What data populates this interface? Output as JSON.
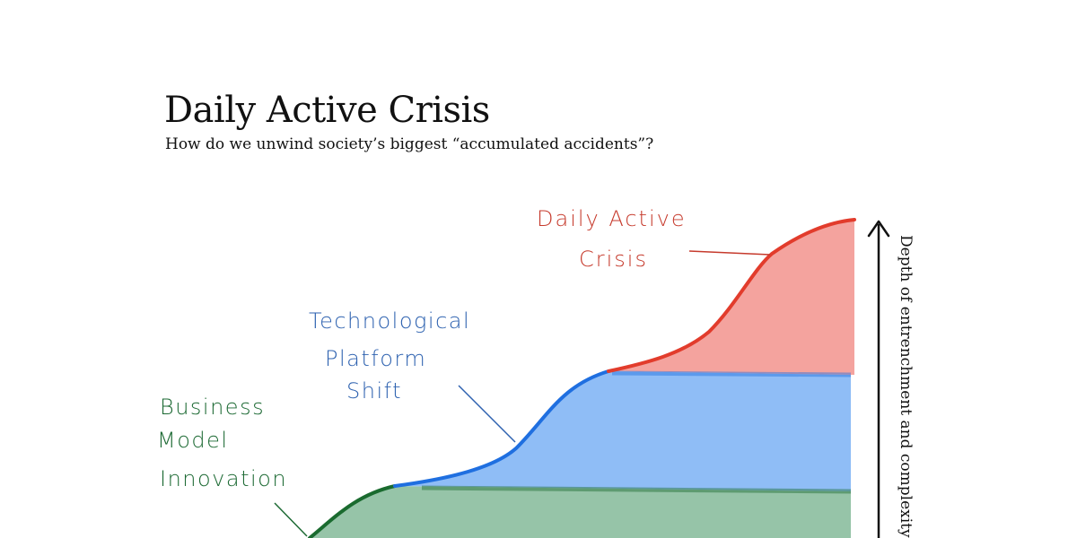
{
  "header": {
    "title": "Daily Active Crisis",
    "subtitle": "How do we unwind society’s biggest “accumulated accidents”?"
  },
  "labels": {
    "crisis": [
      "Daily Active",
      "Crisis"
    ],
    "platform": [
      "Technological",
      "Platform",
      "Shift"
    ],
    "business": [
      "Business",
      "Model",
      "Innovation"
    ]
  },
  "axis": {
    "y_label": "Depth of entrenchment and complexity"
  },
  "colors": {
    "crisis_line": "#e23c2c",
    "crisis_fill": "#f4a39e",
    "platform_line": "#1f6fe0",
    "platform_fill": "#8fbdf6",
    "business_line": "#1a6b2f",
    "business_fill": "#96c4a8",
    "crisis_text": "#c63a2c",
    "platform_text": "#2e62b0",
    "business_text": "#1d6a34"
  }
}
